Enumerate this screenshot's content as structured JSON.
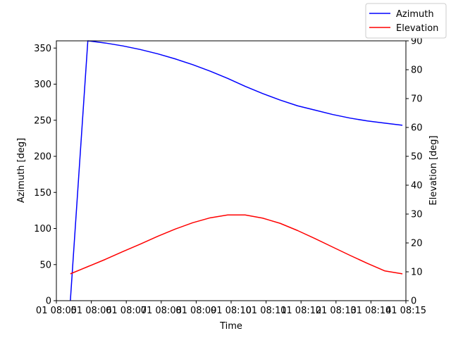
{
  "chart_data": {
    "type": "line",
    "xlabel": "Time",
    "ylabel_left": "Azimuth [deg]",
    "ylabel_right": "Elevation [deg]",
    "xlim_minutes": [
      5,
      15
    ],
    "ylim_left": [
      0,
      360
    ],
    "ylim_right": [
      0,
      90
    ],
    "x_tick_labels": [
      "01 08:05",
      "01 08:06",
      "01 08:07",
      "01 08:08",
      "01 08:09",
      "01 08:10",
      "01 08:11",
      "01 08:12",
      "01 08:13",
      "01 08:14",
      "01 08:15"
    ],
    "y_left_ticks": [
      0,
      50,
      100,
      150,
      200,
      250,
      300,
      350
    ],
    "y_right_ticks": [
      0,
      10,
      20,
      30,
      40,
      50,
      60,
      70,
      80,
      90
    ],
    "grid": false,
    "legend_position": "top-right",
    "series": [
      {
        "name": "Azimuth",
        "color": "#0000ff",
        "axis": "left",
        "x": [
          "08:05:24",
          "08:05:54",
          "08:06:24",
          "08:06:54",
          "08:07:24",
          "08:07:54",
          "08:08:24",
          "08:08:54",
          "08:09:24",
          "08:09:54",
          "08:10:24",
          "08:10:54",
          "08:11:24",
          "08:11:54",
          "08:12:24",
          "08:12:54",
          "08:13:24",
          "08:13:54",
          "08:14:24",
          "08:14:54"
        ],
        "values": [
          0,
          360,
          357,
          353,
          348,
          342,
          335,
          327,
          318,
          308,
          297,
          287,
          278,
          270,
          264,
          258,
          253,
          249,
          246,
          243
        ]
      },
      {
        "name": "Elevation",
        "color": "#ff0000",
        "axis": "right",
        "x": [
          "08:05:24",
          "08:05:54",
          "08:06:24",
          "08:06:54",
          "08:07:24",
          "08:07:54",
          "08:08:24",
          "08:08:54",
          "08:09:24",
          "08:09:54",
          "08:10:24",
          "08:10:54",
          "08:11:24",
          "08:11:54",
          "08:12:24",
          "08:12:54",
          "08:13:24",
          "08:13:54",
          "08:14:24",
          "08:14:54"
        ],
        "values": [
          9.3,
          11.8,
          14.3,
          17.0,
          19.6,
          22.3,
          24.8,
          27.0,
          28.7,
          29.7,
          29.7,
          28.6,
          26.8,
          24.3,
          21.5,
          18.6,
          15.7,
          12.9,
          10.3,
          9.3
        ]
      }
    ]
  }
}
